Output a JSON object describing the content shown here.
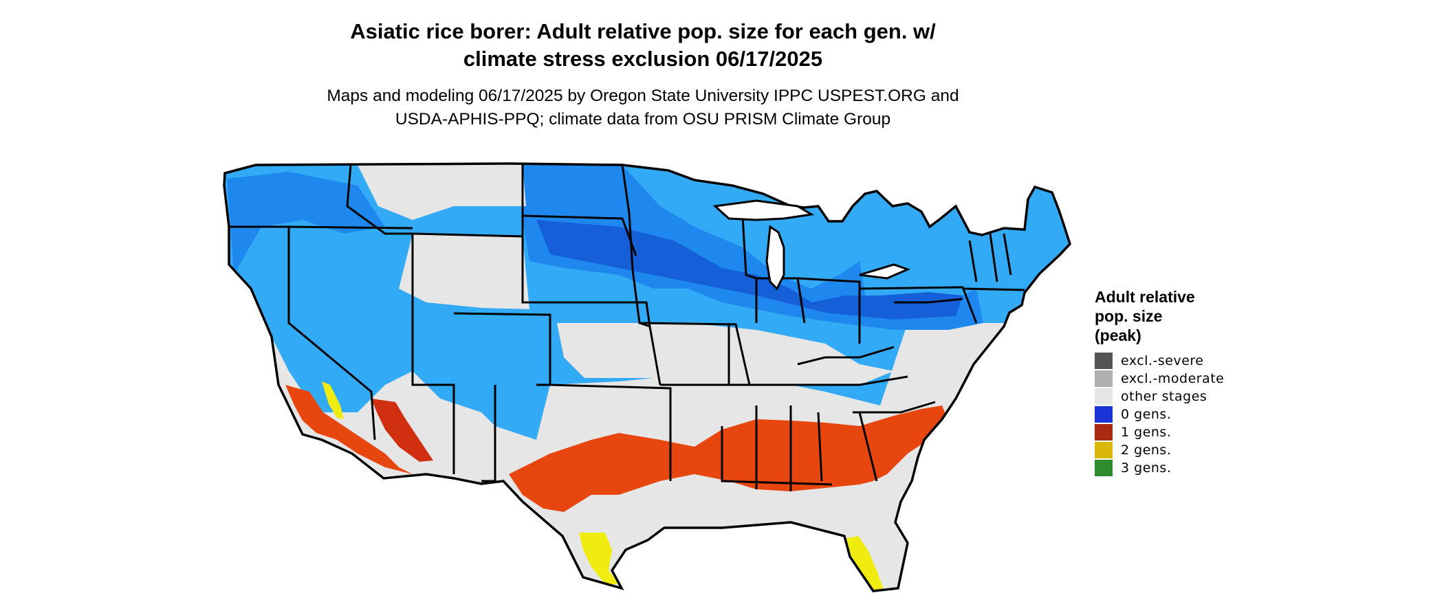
{
  "title": {
    "line1": "Asiatic rice borer: Adult relative pop. size for each gen. w/",
    "line2": "climate stress exclusion 06/17/2025"
  },
  "subtitle": {
    "line1": "Maps and modeling 06/17/2025 by Oregon State University IPPC USPEST.ORG and",
    "line2": "USDA-APHIS-PPQ; climate data from OSU PRISM Climate Group"
  },
  "legend": {
    "title_line1": "Adult relative",
    "title_line2": "pop. size",
    "title_line3": "(peak)",
    "items": [
      {
        "label": "excl.-severe",
        "color": "#555555"
      },
      {
        "label": "excl.-moderate",
        "color": "#b0b0b0"
      },
      {
        "label": "other stages",
        "color": "#e6e6e6"
      },
      {
        "label": "0 gens.",
        "color": "#1a33d9"
      },
      {
        "label": "1 gens.",
        "color": "#a82a12"
      },
      {
        "label": "2 gens.",
        "color": "#d9b80a"
      },
      {
        "label": "3 gens.",
        "color": "#2e8b2e"
      }
    ]
  },
  "map_colors": {
    "background_land": "#e6e6e6",
    "blue_light": "#33aaf5",
    "blue_mid": "#1e88ee",
    "blue_dark": "#1560d8",
    "orange": "#e8460f",
    "orange_dark": "#d03010",
    "yellow": "#f0ec10",
    "border": "#000000"
  }
}
